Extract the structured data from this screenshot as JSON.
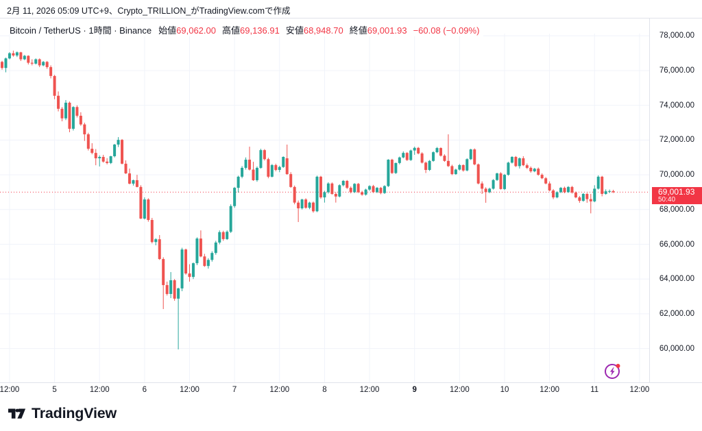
{
  "header": {
    "attribution": "2月 11, 2026 05:09 UTC+9、Crypto_TRILLION_がTradingView.comで作成"
  },
  "legend": {
    "symbol": "Bitcoin / TetherUS · 1時間 · Binance",
    "open_label": "始値",
    "open_value": "69,062.00",
    "high_label": "高値",
    "high_value": "69,136.91",
    "low_label": "安値",
    "low_value": "68,948.70",
    "close_label": "終値",
    "close_value": "69,001.93",
    "change": "−60.08 (−0.09%)"
  },
  "price_badge": {
    "price": "69,001.93",
    "countdown": "50:40"
  },
  "footer": {
    "brand": "TradingView"
  },
  "colors": {
    "up": "#26a69a",
    "down": "#ef5350",
    "accent_red": "#f23645",
    "grid": "#f0f3fa",
    "border": "#e0e3eb",
    "text": "#131722",
    "purple": "#9c27b0"
  },
  "chart_data": {
    "type": "candlestick",
    "symbol": "Bitcoin / TetherUS",
    "exchange": "Binance",
    "interval": "1時間",
    "title": "BTC/USDT 1h candlestick chart, Feb 4 – Feb 11 2026",
    "grid": true,
    "last_price": 69001.93,
    "current_candle": {
      "open": 69062.0,
      "high": 69136.91,
      "low": 68948.7,
      "close": 69001.93,
      "change": -60.08,
      "change_pct": -0.09
    },
    "y_axis": {
      "side": "right",
      "ticks": [
        78000,
        76000,
        74000,
        72000,
        70000,
        68000,
        66000,
        64000,
        62000,
        60000
      ],
      "tick_labels": [
        "78,000.00",
        "76,000.00",
        "74,000.00",
        "72,000.00",
        "70,000.00",
        "68,000.00",
        "66,000.00",
        "64,000.00",
        "62,000.00",
        "60,000.00"
      ]
    },
    "x_axis": {
      "start": "2026-02-04 10:00",
      "step_hours": 1,
      "ticks": [
        {
          "i": 2,
          "label": "12:00",
          "bold": false
        },
        {
          "i": 14,
          "label": "5",
          "bold": false
        },
        {
          "i": 26,
          "label": "12:00",
          "bold": false
        },
        {
          "i": 38,
          "label": "6",
          "bold": false
        },
        {
          "i": 50,
          "label": "12:00",
          "bold": false
        },
        {
          "i": 62,
          "label": "7",
          "bold": false
        },
        {
          "i": 74,
          "label": "12:00",
          "bold": false
        },
        {
          "i": 86,
          "label": "8",
          "bold": false
        },
        {
          "i": 98,
          "label": "12:00",
          "bold": false
        },
        {
          "i": 110,
          "label": "9",
          "bold": true
        },
        {
          "i": 122,
          "label": "12:00",
          "bold": false
        },
        {
          "i": 134,
          "label": "10",
          "bold": false
        },
        {
          "i": 146,
          "label": "12:00",
          "bold": false
        },
        {
          "i": 158,
          "label": "11",
          "bold": false
        },
        {
          "i": 170,
          "label": "12:00",
          "bold": false
        }
      ]
    },
    "candles": [
      [
        76500,
        76560,
        76050,
        76150
      ],
      [
        76150,
        76750,
        75900,
        76700
      ],
      [
        76700,
        77060,
        76650,
        77000
      ],
      [
        77000,
        77150,
        76800,
        76870
      ],
      [
        76870,
        77100,
        76780,
        77050
      ],
      [
        77050,
        77080,
        76550,
        76650
      ],
      [
        76650,
        76900,
        76600,
        76850
      ],
      [
        76850,
        76880,
        76350,
        76450
      ],
      [
        76450,
        76650,
        76300,
        76400
      ],
      [
        76400,
        76700,
        76350,
        76650
      ],
      [
        76650,
        76700,
        76200,
        76300
      ],
      [
        76300,
        76550,
        76250,
        76500
      ],
      [
        76500,
        76550,
        76100,
        76200
      ],
      [
        76200,
        76300,
        75550,
        75690
      ],
      [
        75690,
        75750,
        74350,
        74550
      ],
      [
        74550,
        74800,
        73650,
        73800
      ],
      [
        73800,
        73900,
        73080,
        73250
      ],
      [
        73250,
        74300,
        73150,
        74150
      ],
      [
        74150,
        74220,
        72450,
        72650
      ],
      [
        72650,
        73950,
        72550,
        73900
      ],
      [
        73900,
        74000,
        73300,
        73400
      ],
      [
        73400,
        73600,
        72820,
        72900
      ],
      [
        72900,
        73000,
        71950,
        72330
      ],
      [
        72330,
        72420,
        71400,
        71500
      ],
      [
        71500,
        71820,
        71180,
        71260
      ],
      [
        71260,
        71480,
        70550,
        70950
      ],
      [
        70950,
        71120,
        70480,
        71030
      ],
      [
        71030,
        71150,
        70700,
        70760
      ],
      [
        70760,
        70960,
        70600,
        70680
      ],
      [
        70680,
        71090,
        70620,
        71070
      ],
      [
        71070,
        71780,
        71000,
        71740
      ],
      [
        71740,
        72170,
        71600,
        72010
      ],
      [
        72010,
        72060,
        70600,
        70640
      ],
      [
        70640,
        70830,
        70050,
        70080
      ],
      [
        70080,
        70360,
        69450,
        69490
      ],
      [
        69490,
        69720,
        69380,
        69690
      ],
      [
        69690,
        70000,
        69280,
        69300
      ],
      [
        69300,
        69400,
        67450,
        67480
      ],
      [
        67480,
        68700,
        67430,
        68580
      ],
      [
        68580,
        68650,
        67300,
        67400
      ],
      [
        67400,
        67520,
        66050,
        66130
      ],
      [
        66130,
        66350,
        65940,
        66290
      ],
      [
        66290,
        66530,
        65100,
        65150
      ],
      [
        65150,
        65250,
        62270,
        63650
      ],
      [
        63650,
        63850,
        63050,
        63140
      ],
      [
        63140,
        64400,
        62900,
        63930
      ],
      [
        63930,
        64000,
        62750,
        62870
      ],
      [
        62870,
        63500,
        59950,
        63460
      ],
      [
        63460,
        65800,
        63300,
        65700
      ],
      [
        65700,
        65750,
        64250,
        64320
      ],
      [
        64320,
        64850,
        63850,
        64120
      ],
      [
        64120,
        64950,
        64000,
        64910
      ],
      [
        64910,
        66400,
        64800,
        66330
      ],
      [
        66330,
        66800,
        65250,
        65300
      ],
      [
        65300,
        65450,
        64700,
        64750
      ],
      [
        64750,
        65200,
        64600,
        65100
      ],
      [
        65100,
        65600,
        65000,
        65500
      ],
      [
        65500,
        66200,
        65400,
        66100
      ],
      [
        66100,
        66800,
        66000,
        66700
      ],
      [
        66700,
        66780,
        66200,
        66300
      ],
      [
        66300,
        66800,
        66250,
        66720
      ],
      [
        66720,
        68300,
        66650,
        68200
      ],
      [
        68200,
        69300,
        68100,
        69250
      ],
      [
        69250,
        69950,
        68980,
        69890
      ],
      [
        69890,
        70500,
        69800,
        70400
      ],
      [
        70400,
        71000,
        70300,
        70870
      ],
      [
        70870,
        71620,
        70250,
        70300
      ],
      [
        70300,
        70750,
        69650,
        69690
      ],
      [
        69690,
        70480,
        69600,
        70400
      ],
      [
        70400,
        71500,
        70350,
        71420
      ],
      [
        71420,
        71480,
        70820,
        70900
      ],
      [
        70900,
        70980,
        69800,
        69890
      ],
      [
        69890,
        70620,
        69850,
        70560
      ],
      [
        70560,
        70640,
        70200,
        70280
      ],
      [
        70280,
        70520,
        70150,
        70450
      ],
      [
        70450,
        71060,
        70400,
        71030
      ],
      [
        70950,
        71740,
        70000,
        70040
      ],
      [
        70040,
        70150,
        69250,
        69300
      ],
      [
        69300,
        69380,
        68300,
        68400
      ],
      [
        68400,
        68520,
        67280,
        68070
      ],
      [
        68070,
        68620,
        68000,
        68580
      ],
      [
        68580,
        68650,
        68050,
        68100
      ],
      [
        68100,
        68450,
        68020,
        68400
      ],
      [
        68400,
        68460,
        67820,
        67900
      ],
      [
        67900,
        69950,
        67850,
        69890
      ],
      [
        69890,
        69940,
        68620,
        68700
      ],
      [
        68700,
        69080,
        68400,
        69000
      ],
      [
        69000,
        69570,
        68920,
        69500
      ],
      [
        69500,
        69560,
        68850,
        68900
      ],
      [
        68900,
        69000,
        68400,
        68750
      ],
      [
        68750,
        69450,
        68700,
        69400
      ],
      [
        69400,
        69700,
        69330,
        69650
      ],
      [
        69650,
        69700,
        69180,
        69250
      ],
      [
        69250,
        69330,
        68930,
        69000
      ],
      [
        69000,
        69520,
        68950,
        69480
      ],
      [
        69480,
        69530,
        68950,
        69000
      ],
      [
        69000,
        69080,
        68790,
        68860
      ],
      [
        68860,
        69200,
        68800,
        69150
      ],
      [
        69150,
        69400,
        69080,
        69350
      ],
      [
        69350,
        69420,
        68950,
        69000
      ],
      [
        69000,
        69300,
        68950,
        69250
      ],
      [
        69250,
        69300,
        68880,
        68950
      ],
      [
        68950,
        69400,
        68900,
        69350
      ],
      [
        69350,
        70900,
        69300,
        70870
      ],
      [
        70870,
        70920,
        70050,
        70100
      ],
      [
        70100,
        70700,
        70050,
        70680
      ],
      [
        70680,
        71050,
        70600,
        71000
      ],
      [
        71000,
        71350,
        70950,
        71260
      ],
      [
        71260,
        71310,
        70800,
        70850
      ],
      [
        70850,
        71450,
        70800,
        71400
      ],
      [
        71400,
        71620,
        71150,
        71550
      ],
      [
        71550,
        71600,
        71180,
        71230
      ],
      [
        71230,
        71300,
        70650,
        70700
      ],
      [
        70700,
        70760,
        70100,
        70280
      ],
      [
        70280,
        70850,
        70220,
        70800
      ],
      [
        70800,
        71350,
        70750,
        71300
      ],
      [
        71300,
        71600,
        71250,
        71540
      ],
      [
        71540,
        71580,
        71050,
        71100
      ],
      [
        71100,
        71180,
        70750,
        70800
      ],
      [
        70800,
        72330,
        70450,
        70500
      ],
      [
        70500,
        70580,
        69980,
        70040
      ],
      [
        70040,
        70350,
        70000,
        70300
      ],
      [
        70300,
        70620,
        70250,
        70560
      ],
      [
        70560,
        70600,
        70180,
        70250
      ],
      [
        70250,
        70950,
        70200,
        70900
      ],
      [
        70900,
        71500,
        70850,
        71460
      ],
      [
        71460,
        71520,
        70550,
        70600
      ],
      [
        70600,
        70650,
        69450,
        69500
      ],
      [
        69500,
        69620,
        68900,
        69200
      ],
      [
        69200,
        69280,
        68390,
        69000
      ],
      [
        69000,
        69260,
        68940,
        69200
      ],
      [
        69200,
        69750,
        69150,
        69700
      ],
      [
        69700,
        70120,
        69650,
        70080
      ],
      [
        70080,
        70150,
        69150,
        69180
      ],
      [
        69180,
        70050,
        69120,
        70000
      ],
      [
        70000,
        70750,
        69950,
        70700
      ],
      [
        70700,
        71070,
        70650,
        71030
      ],
      [
        71030,
        71080,
        70450,
        70500
      ],
      [
        70500,
        71000,
        70360,
        70950
      ],
      [
        70950,
        71070,
        70500,
        70550
      ],
      [
        70550,
        70650,
        70330,
        70400
      ],
      [
        70400,
        70480,
        70120,
        70200
      ],
      [
        70200,
        70400,
        70150,
        70350
      ],
      [
        70350,
        70420,
        69950,
        70000
      ],
      [
        70000,
        70080,
        69750,
        69800
      ],
      [
        69800,
        69870,
        69450,
        69500
      ],
      [
        69500,
        69620,
        69050,
        69100
      ],
      [
        69100,
        69180,
        68600,
        68700
      ],
      [
        68700,
        69050,
        68650,
        69000
      ],
      [
        69000,
        69300,
        68950,
        69250
      ],
      [
        69250,
        69320,
        68940,
        69000
      ],
      [
        69000,
        69350,
        68960,
        69300
      ],
      [
        69300,
        69360,
        68920,
        68980
      ],
      [
        68980,
        69040,
        68650,
        68700
      ],
      [
        68700,
        68780,
        68390,
        68500
      ],
      [
        68500,
        68950,
        68450,
        68900
      ],
      [
        68900,
        68960,
        68390,
        68600
      ],
      [
        68600,
        68900,
        67780,
        68470
      ],
      [
        68470,
        69400,
        68420,
        69200
      ],
      [
        69200,
        69970,
        69150,
        69890
      ],
      [
        69890,
        69940,
        68760,
        68900
      ],
      [
        68900,
        69160,
        68850,
        69050
      ],
      [
        69050,
        69150,
        68950,
        69062
      ],
      [
        69062,
        69136.91,
        68948.7,
        69001.93
      ]
    ]
  }
}
